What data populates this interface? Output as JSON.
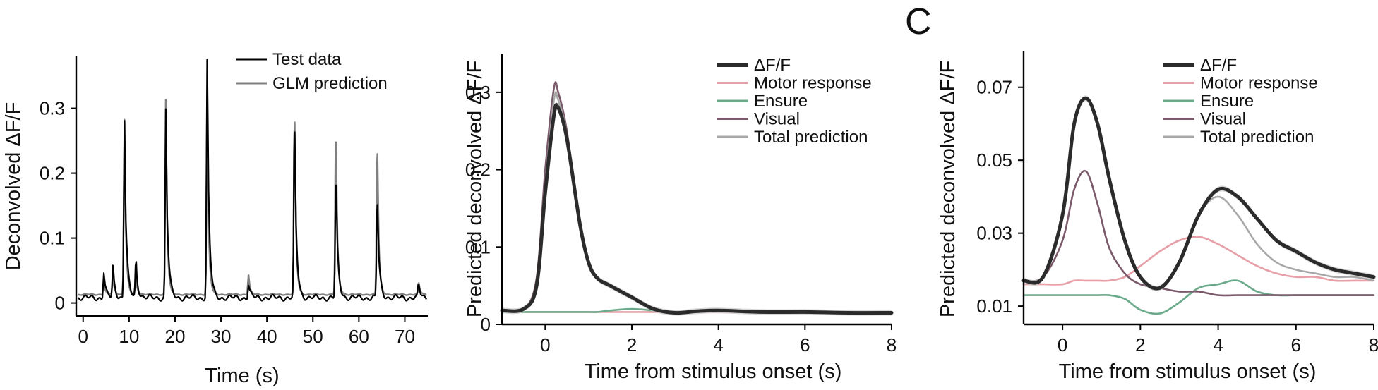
{
  "panel_labels": [
    "",
    "",
    "C"
  ],
  "colors": {
    "test_data": "#000000",
    "glm_prediction": "#808080",
    "dff": "#2b2b2b",
    "dff_band": "#c8c8c8",
    "motor": "#e8a0a8",
    "ensure": "#6aaa8a",
    "visual": "#7a5a6a",
    "total": "#a8a8a8"
  },
  "chart_data": [
    {
      "type": "line",
      "title": "",
      "xlabel": "Time (s)",
      "ylabel": "Deconvolved ΔF/F",
      "xlim": [
        -1.5,
        75
      ],
      "ylim": [
        -0.02,
        0.38
      ],
      "xticks": [
        0,
        10,
        20,
        30,
        40,
        50,
        60,
        70
      ],
      "xtick_labels": [
        "0",
        "10",
        "20",
        "30",
        "40",
        "50",
        "60",
        "70"
      ],
      "yticks": [
        0,
        0.1,
        0.2,
        0.3
      ],
      "ytick_labels": [
        "0",
        "0.1",
        "0.2",
        "0.3"
      ],
      "legend_position": "top-right",
      "peaks": [
        {
          "t": 4.5,
          "test": 0.04,
          "glm": 0.02
        },
        {
          "t": 6.5,
          "test": 0.05,
          "glm": 0.03
        },
        {
          "t": 9,
          "test": 0.275,
          "glm": 0.27
        },
        {
          "t": 11.5,
          "test": 0.06,
          "glm": 0.03
        },
        {
          "t": 18,
          "test": 0.29,
          "glm": 0.3
        },
        {
          "t": 27,
          "test": 0.37,
          "glm": 0.31
        },
        {
          "t": 36,
          "test": 0.02,
          "glm": 0.03
        },
        {
          "t": 46,
          "test": 0.28,
          "glm": 0.305
        },
        {
          "t": 55,
          "test": 0.19,
          "glm": 0.27
        },
        {
          "t": 64,
          "test": 0.16,
          "glm": 0.25
        },
        {
          "t": 73,
          "test": 0.02,
          "glm": 0.02
        }
      ],
      "series": [
        {
          "name": "Test data",
          "color": "#000000"
        },
        {
          "name": "GLM prediction",
          "color": "#808080"
        }
      ]
    },
    {
      "type": "line",
      "title": "",
      "xlabel": "Time from stimulus onset (s)",
      "ylabel": "Predicted deconvolved ΔF/F",
      "xlim": [
        -1,
        8
      ],
      "ylim": [
        0,
        0.35
      ],
      "xticks": [
        0,
        2,
        4,
        6,
        8
      ],
      "xtick_labels": [
        "0",
        "2",
        "4",
        "6",
        "8"
      ],
      "yticks": [
        0,
        0.1,
        0.2,
        0.3
      ],
      "ytick_labels": [
        "0",
        "0.1",
        "0.2",
        "0.3"
      ],
      "legend_position": "top-right",
      "x": [
        -1,
        -0.5,
        -0.2,
        0,
        0.2,
        0.3,
        0.5,
        0.8,
        1.0,
        1.2,
        1.5,
        2.0,
        2.5,
        3.0,
        3.5,
        4.0,
        5.0,
        6.0,
        7.0,
        8.0
      ],
      "series": [
        {
          "name": "ΔF/F",
          "values": [
            0.018,
            0.02,
            0.05,
            0.17,
            0.27,
            0.28,
            0.24,
            0.13,
            0.08,
            0.06,
            0.05,
            0.035,
            0.02,
            0.015,
            0.017,
            0.018,
            0.016,
            0.016,
            0.015,
            0.015
          ]
        },
        {
          "name": "Motor response",
          "values": [
            0.016,
            0.016,
            0.016,
            0.016,
            0.016,
            0.016,
            0.016,
            0.016,
            0.016,
            0.016,
            0.016,
            0.016,
            0.016,
            0.016,
            0.016,
            0.016,
            0.016,
            0.016,
            0.016,
            0.016
          ]
        },
        {
          "name": "Ensure",
          "values": [
            0.016,
            0.016,
            0.016,
            0.016,
            0.016,
            0.016,
            0.016,
            0.016,
            0.016,
            0.016,
            0.018,
            0.02,
            0.018,
            0.016,
            0.017,
            0.018,
            0.016,
            0.016,
            0.016,
            0.016
          ]
        },
        {
          "name": "Visual",
          "values": [
            0.018,
            0.02,
            0.06,
            0.2,
            0.305,
            0.3,
            0.25,
            0.13,
            0.08,
            0.06,
            0.05,
            0.035,
            0.02,
            0.015,
            0.016,
            0.017,
            0.016,
            0.016,
            0.015,
            0.015
          ]
        },
        {
          "name": "Total prediction",
          "values": [
            0.018,
            0.02,
            0.055,
            0.18,
            0.29,
            0.29,
            0.245,
            0.13,
            0.08,
            0.06,
            0.05,
            0.035,
            0.02,
            0.015,
            0.017,
            0.018,
            0.016,
            0.016,
            0.015,
            0.015
          ]
        }
      ]
    },
    {
      "type": "line",
      "title": "",
      "xlabel": "Time from stimulus onset (s)",
      "ylabel": "Predicted deconvolved ΔF/F",
      "xlim": [
        -1,
        8
      ],
      "ylim": [
        0.005,
        0.08
      ],
      "xticks": [
        0,
        2,
        4,
        6,
        8
      ],
      "xtick_labels": [
        "0",
        "2",
        "4",
        "6",
        "8"
      ],
      "yticks": [
        0.01,
        0.03,
        0.05,
        0.07
      ],
      "ytick_labels": [
        "0.01",
        "0.03",
        "0.05",
        "0.07"
      ],
      "legend_position": "top-right",
      "x": [
        -1,
        -0.5,
        0,
        0.3,
        0.6,
        0.9,
        1.2,
        1.6,
        2.0,
        2.5,
        3.0,
        3.5,
        4.0,
        4.5,
        5.0,
        5.5,
        6.0,
        6.5,
        7.0,
        7.5,
        8.0
      ],
      "series": [
        {
          "name": "ΔF/F",
          "values": [
            0.017,
            0.018,
            0.035,
            0.06,
            0.067,
            0.06,
            0.045,
            0.028,
            0.018,
            0.015,
            0.022,
            0.035,
            0.042,
            0.04,
            0.034,
            0.028,
            0.025,
            0.022,
            0.02,
            0.019,
            0.018
          ]
        },
        {
          "name": "Motor response",
          "values": [
            0.016,
            0.016,
            0.016,
            0.017,
            0.017,
            0.017,
            0.017,
            0.018,
            0.021,
            0.025,
            0.028,
            0.029,
            0.027,
            0.024,
            0.021,
            0.019,
            0.018,
            0.018,
            0.017,
            0.017,
            0.017
          ]
        },
        {
          "name": "Ensure",
          "values": [
            0.013,
            0.013,
            0.013,
            0.013,
            0.013,
            0.013,
            0.013,
            0.012,
            0.009,
            0.008,
            0.011,
            0.015,
            0.016,
            0.017,
            0.014,
            0.013,
            0.013,
            0.013,
            0.013,
            0.013,
            0.013
          ]
        },
        {
          "name": "Visual",
          "values": [
            0.017,
            0.018,
            0.028,
            0.042,
            0.047,
            0.038,
            0.026,
            0.019,
            0.016,
            0.015,
            0.014,
            0.014,
            0.013,
            0.013,
            0.013,
            0.013,
            0.013,
            0.013,
            0.013,
            0.013,
            0.013
          ]
        },
        {
          "name": "Total prediction",
          "values": [
            0.017,
            0.018,
            0.035,
            0.06,
            0.067,
            0.06,
            0.045,
            0.028,
            0.018,
            0.015,
            0.022,
            0.035,
            0.04,
            0.035,
            0.027,
            0.022,
            0.02,
            0.019,
            0.018,
            0.018,
            0.017
          ]
        }
      ]
    }
  ]
}
